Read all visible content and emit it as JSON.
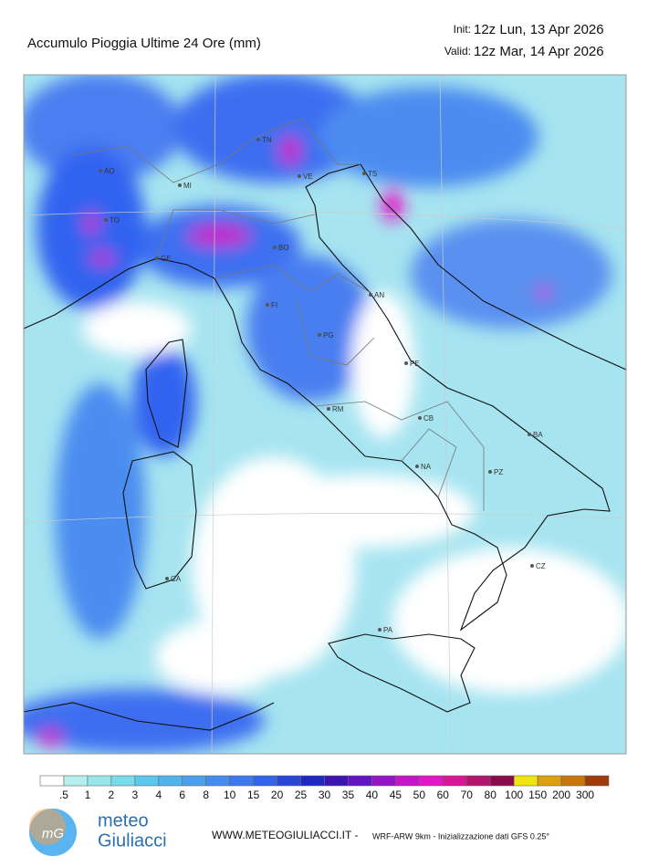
{
  "header": {
    "title": "Accumulo Pioggia Ultime 24 Ore   (mm)",
    "init_label": "Init:",
    "init_value": "12z Lun, 13 Apr 2026",
    "valid_label": "Valid:",
    "valid_value": "12z Mar, 14 Apr 2026"
  },
  "cities": [
    "AO",
    "MI",
    "TO",
    "GE",
    "TN",
    "VE",
    "TS",
    "BO",
    "FI",
    "AN",
    "PG",
    "PE",
    "RM",
    "CB",
    "BA",
    "NA",
    "PZ",
    "CZ",
    "CA",
    "PA"
  ],
  "legend": {
    "labels": [
      ".5",
      "1",
      "2",
      "3",
      "4",
      "6",
      "8",
      "10",
      "15",
      "20",
      "25",
      "30",
      "35",
      "40",
      "45",
      "50",
      "60",
      "70",
      "80",
      "100",
      "150",
      "200",
      "300"
    ],
    "colors": [
      "#ffffff",
      "#b4f0f0",
      "#96e6eb",
      "#78dceb",
      "#5ac8eb",
      "#50b4eb",
      "#4ba0eb",
      "#468cf0",
      "#3c78f0",
      "#3264f0",
      "#2846dc",
      "#1e28c8",
      "#3c14b4",
      "#6414c8",
      "#9614c8",
      "#c814c8",
      "#e614c8",
      "#dc1496",
      "#b4146e",
      "#8c0a4b",
      "#f0e60a",
      "#dca00a",
      "#c8780a",
      "#a03c0a"
    ]
  },
  "footer": {
    "logo_mark": "mG",
    "logo_line1": "meteo",
    "logo_line2": "Giuliacci",
    "site": "WWW.METEOGIULIACCI.IT - ",
    "model": "WRF-ARW 9km - Inizializzazione dati GFS 0.25°"
  }
}
